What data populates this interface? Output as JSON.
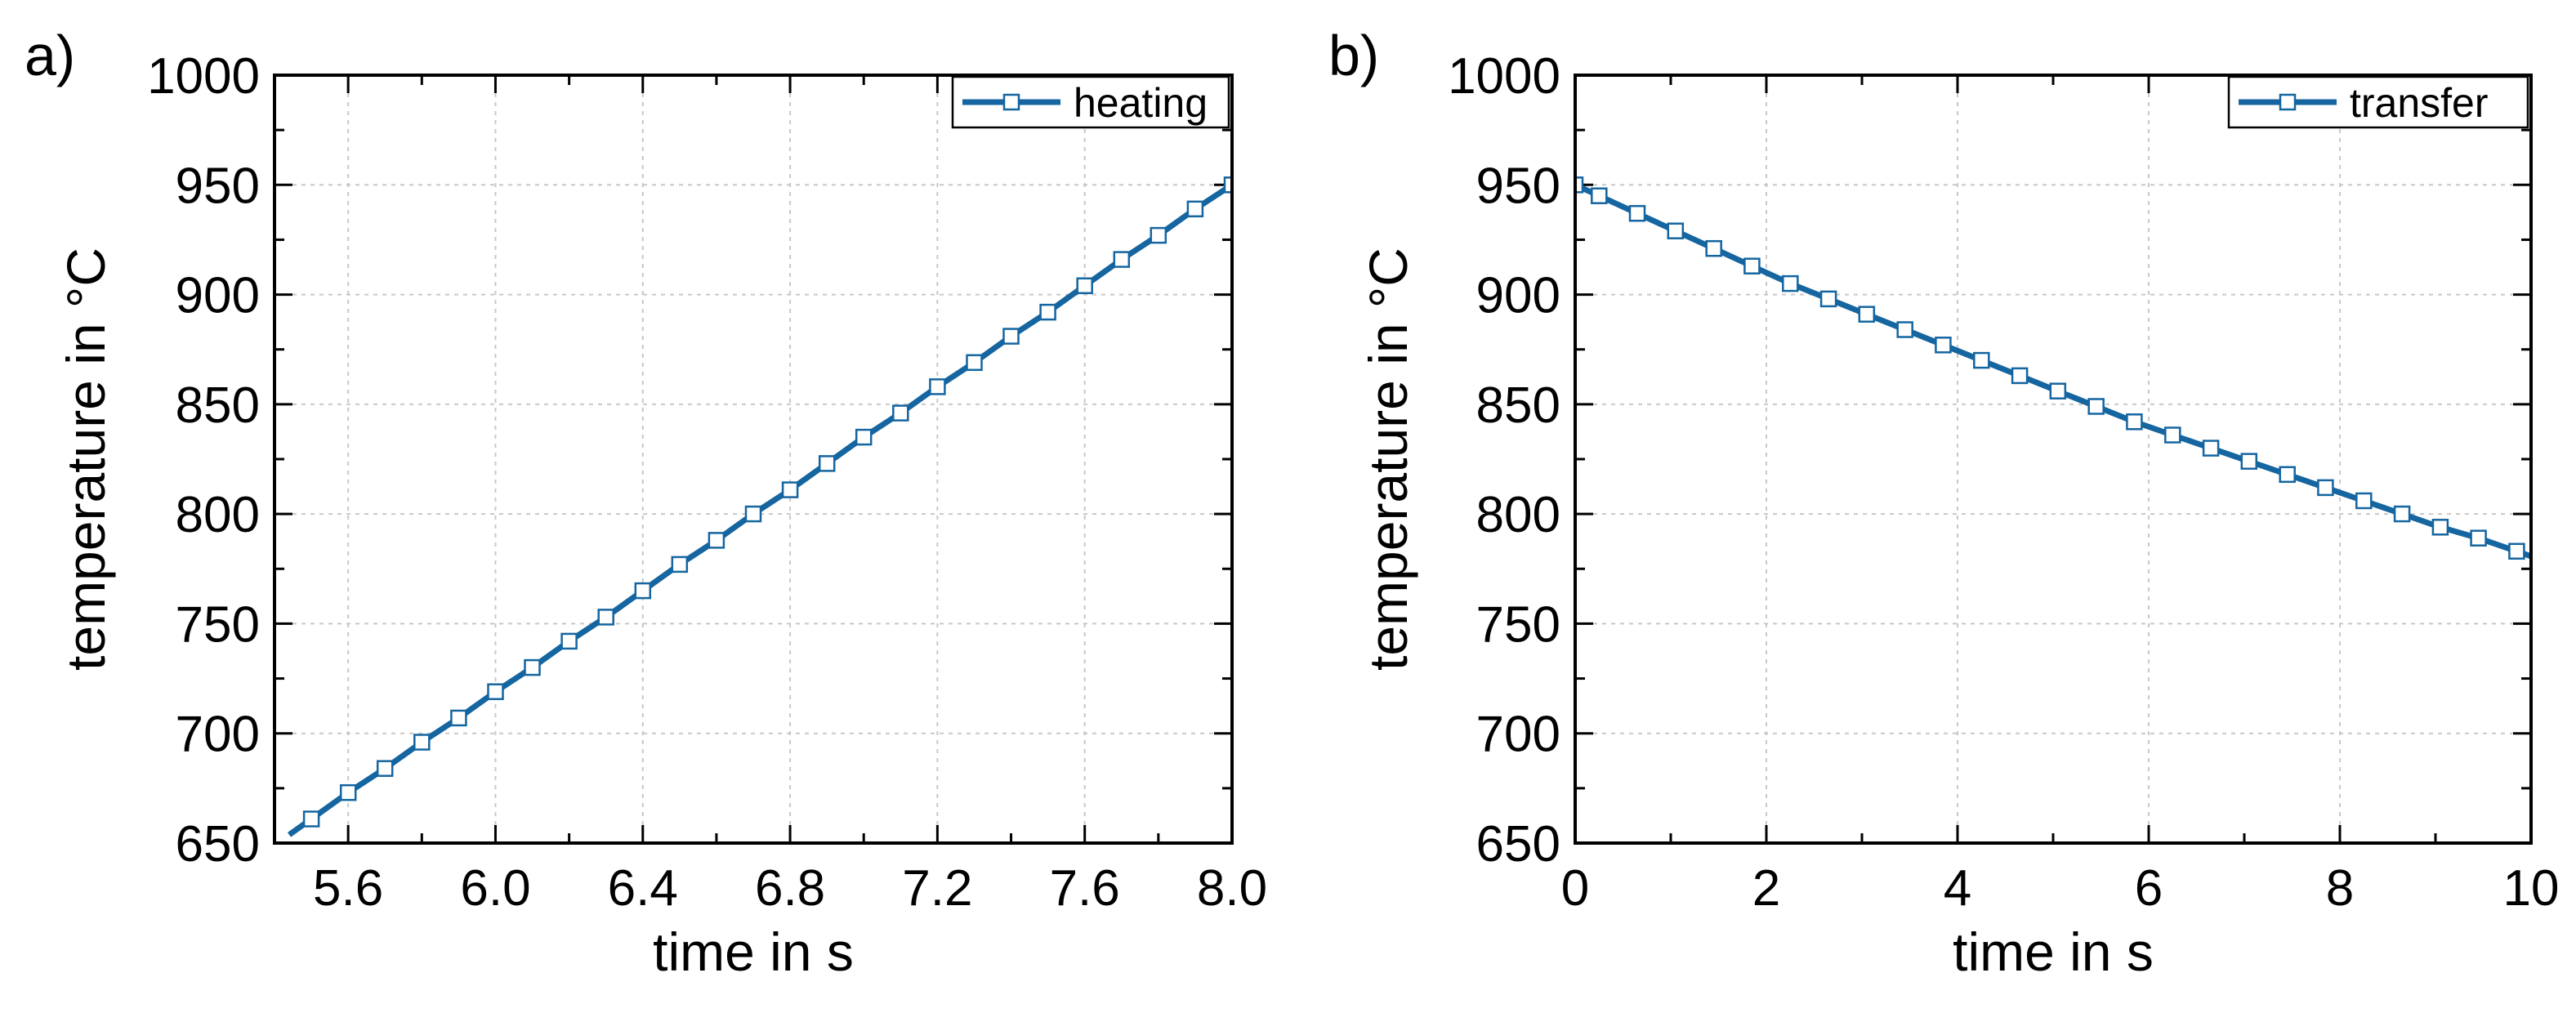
{
  "chart_data": [
    {
      "type": "line",
      "panel_label": "a)",
      "xlabel": "time in s",
      "ylabel": "temperature in °C",
      "xlim": [
        5.4,
        8.0
      ],
      "ylim": [
        650,
        1000
      ],
      "xticks": [
        5.6,
        6.0,
        6.4,
        6.8,
        7.2,
        7.6,
        8.0
      ],
      "xtick_labels": [
        "5.6",
        "6.0",
        "6.4",
        "6.8",
        "7.2",
        "7.6",
        "8.0"
      ],
      "yticks": [
        650,
        700,
        750,
        800,
        850,
        900,
        950,
        1000
      ],
      "ytick_labels": [
        "650",
        "700",
        "750",
        "800",
        "850",
        "900",
        "950",
        "1000"
      ],
      "grid": true,
      "legend_position": "top-right",
      "series": [
        {
          "name": "heating",
          "color": "#1565a0",
          "marker": "square-open",
          "x": [
            5.5,
            5.6,
            5.7,
            5.8,
            5.9,
            6.0,
            6.1,
            6.2,
            6.3,
            6.4,
            6.5,
            6.6,
            6.7,
            6.8,
            6.9,
            7.0,
            7.1,
            7.2,
            7.3,
            7.4,
            7.5,
            7.6,
            7.7,
            7.8,
            7.9,
            8.0
          ],
          "y": [
            661,
            673,
            684,
            696,
            707,
            719,
            730,
            742,
            753,
            765,
            777,
            788,
            800,
            811,
            823,
            835,
            846,
            858,
            869,
            881,
            892,
            904,
            916,
            927,
            939,
            950
          ]
        }
      ]
    },
    {
      "type": "line",
      "panel_label": "b)",
      "xlabel": "time in s",
      "ylabel": "temperature in °C",
      "xlim": [
        0,
        10
      ],
      "ylim": [
        650,
        1000
      ],
      "xticks": [
        0,
        2,
        4,
        6,
        8,
        10
      ],
      "xtick_labels": [
        "0",
        "2",
        "4",
        "6",
        "8",
        "10"
      ],
      "yticks": [
        650,
        700,
        750,
        800,
        850,
        900,
        950,
        1000
      ],
      "ytick_labels": [
        "650",
        "700",
        "750",
        "800",
        "850",
        "900",
        "950",
        "1000"
      ],
      "grid": true,
      "legend_position": "top-right",
      "series": [
        {
          "name": "transfer",
          "color": "#1565a0",
          "marker": "square-open",
          "x": [
            0,
            0.25,
            0.65,
            1.05,
            1.45,
            1.85,
            2.25,
            2.65,
            3.05,
            3.45,
            3.85,
            4.25,
            4.65,
            5.05,
            5.45,
            5.85,
            6.25,
            6.65,
            7.05,
            7.45,
            7.85,
            8.25,
            8.65,
            9.05,
            9.45,
            9.85
          ],
          "y": [
            950,
            945,
            937,
            929,
            921,
            913,
            905,
            898,
            891,
            884,
            877,
            870,
            863,
            856,
            849,
            842,
            836,
            830,
            824,
            818,
            812,
            806,
            800,
            794,
            789,
            783
          ]
        }
      ]
    }
  ]
}
